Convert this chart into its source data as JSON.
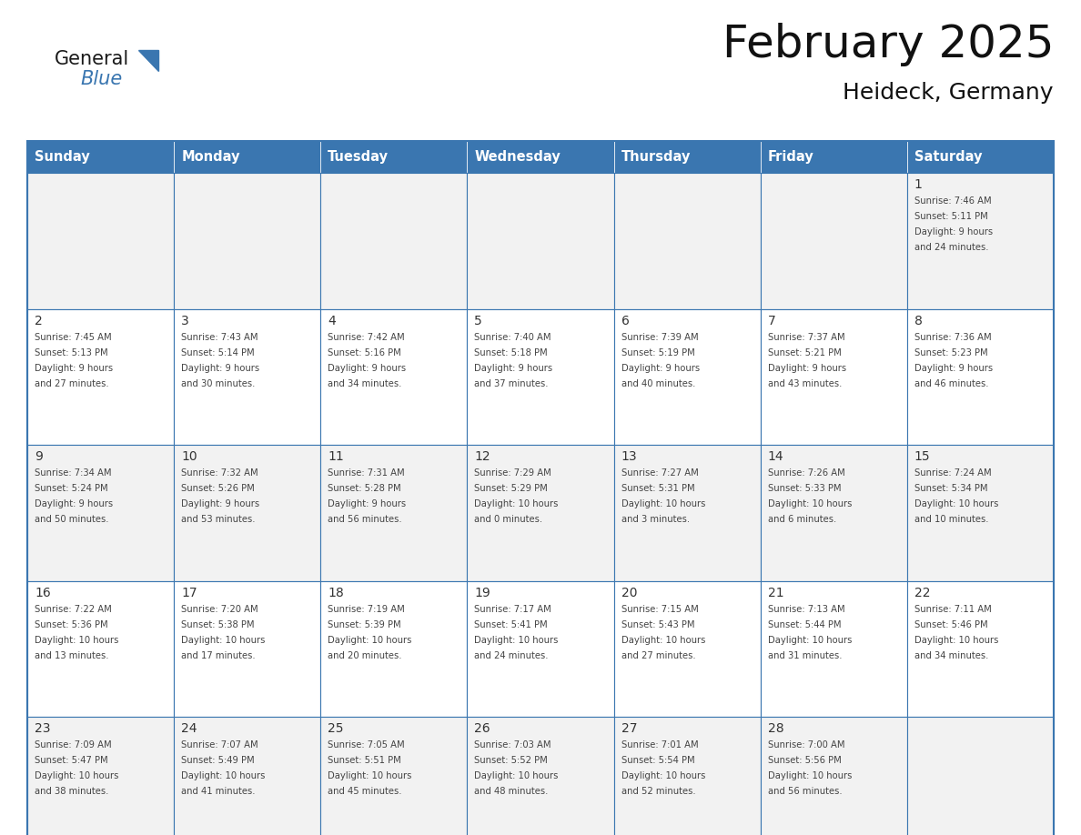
{
  "title": "February 2025",
  "subtitle": "Heideck, Germany",
  "days_of_week": [
    "Sunday",
    "Monday",
    "Tuesday",
    "Wednesday",
    "Thursday",
    "Friday",
    "Saturday"
  ],
  "header_bg": "#3a76b0",
  "header_text": "#ffffff",
  "cell_bg_odd": "#f2f2f2",
  "cell_bg_even": "#ffffff",
  "border_color": "#3a76b0",
  "text_color": "#444444",
  "day_num_color": "#333333",
  "calendar_data": [
    [
      null,
      null,
      null,
      null,
      null,
      null,
      1
    ],
    [
      2,
      3,
      4,
      5,
      6,
      7,
      8
    ],
    [
      9,
      10,
      11,
      12,
      13,
      14,
      15
    ],
    [
      16,
      17,
      18,
      19,
      20,
      21,
      22
    ],
    [
      23,
      24,
      25,
      26,
      27,
      28,
      null
    ]
  ],
  "sunrise_data": {
    "1": "7:46 AM",
    "2": "7:45 AM",
    "3": "7:43 AM",
    "4": "7:42 AM",
    "5": "7:40 AM",
    "6": "7:39 AM",
    "7": "7:37 AM",
    "8": "7:36 AM",
    "9": "7:34 AM",
    "10": "7:32 AM",
    "11": "7:31 AM",
    "12": "7:29 AM",
    "13": "7:27 AM",
    "14": "7:26 AM",
    "15": "7:24 AM",
    "16": "7:22 AM",
    "17": "7:20 AM",
    "18": "7:19 AM",
    "19": "7:17 AM",
    "20": "7:15 AM",
    "21": "7:13 AM",
    "22": "7:11 AM",
    "23": "7:09 AM",
    "24": "7:07 AM",
    "25": "7:05 AM",
    "26": "7:03 AM",
    "27": "7:01 AM",
    "28": "7:00 AM"
  },
  "sunset_data": {
    "1": "5:11 PM",
    "2": "5:13 PM",
    "3": "5:14 PM",
    "4": "5:16 PM",
    "5": "5:18 PM",
    "6": "5:19 PM",
    "7": "5:21 PM",
    "8": "5:23 PM",
    "9": "5:24 PM",
    "10": "5:26 PM",
    "11": "5:28 PM",
    "12": "5:29 PM",
    "13": "5:31 PM",
    "14": "5:33 PM",
    "15": "5:34 PM",
    "16": "5:36 PM",
    "17": "5:38 PM",
    "18": "5:39 PM",
    "19": "5:41 PM",
    "20": "5:43 PM",
    "21": "5:44 PM",
    "22": "5:46 PM",
    "23": "5:47 PM",
    "24": "5:49 PM",
    "25": "5:51 PM",
    "26": "5:52 PM",
    "27": "5:54 PM",
    "28": "5:56 PM"
  },
  "daylight_data": {
    "1": [
      "9 hours",
      "and 24 minutes."
    ],
    "2": [
      "9 hours",
      "and 27 minutes."
    ],
    "3": [
      "9 hours",
      "and 30 minutes."
    ],
    "4": [
      "9 hours",
      "and 34 minutes."
    ],
    "5": [
      "9 hours",
      "and 37 minutes."
    ],
    "6": [
      "9 hours",
      "and 40 minutes."
    ],
    "7": [
      "9 hours",
      "and 43 minutes."
    ],
    "8": [
      "9 hours",
      "and 46 minutes."
    ],
    "9": [
      "9 hours",
      "and 50 minutes."
    ],
    "10": [
      "9 hours",
      "and 53 minutes."
    ],
    "11": [
      "9 hours",
      "and 56 minutes."
    ],
    "12": [
      "10 hours",
      "and 0 minutes."
    ],
    "13": [
      "10 hours",
      "and 3 minutes."
    ],
    "14": [
      "10 hours",
      "and 6 minutes."
    ],
    "15": [
      "10 hours",
      "and 10 minutes."
    ],
    "16": [
      "10 hours",
      "and 13 minutes."
    ],
    "17": [
      "10 hours",
      "and 17 minutes."
    ],
    "18": [
      "10 hours",
      "and 20 minutes."
    ],
    "19": [
      "10 hours",
      "and 24 minutes."
    ],
    "20": [
      "10 hours",
      "and 27 minutes."
    ],
    "21": [
      "10 hours",
      "and 31 minutes."
    ],
    "22": [
      "10 hours",
      "and 34 minutes."
    ],
    "23": [
      "10 hours",
      "and 38 minutes."
    ],
    "24": [
      "10 hours",
      "and 41 minutes."
    ],
    "25": [
      "10 hours",
      "and 45 minutes."
    ],
    "26": [
      "10 hours",
      "and 48 minutes."
    ],
    "27": [
      "10 hours",
      "and 52 minutes."
    ],
    "28": [
      "10 hours",
      "and 56 minutes."
    ]
  },
  "logo_color_general": "#1a1a1a",
  "logo_color_blue": "#3a76b0",
  "logo_triangle_color": "#3a76b0"
}
